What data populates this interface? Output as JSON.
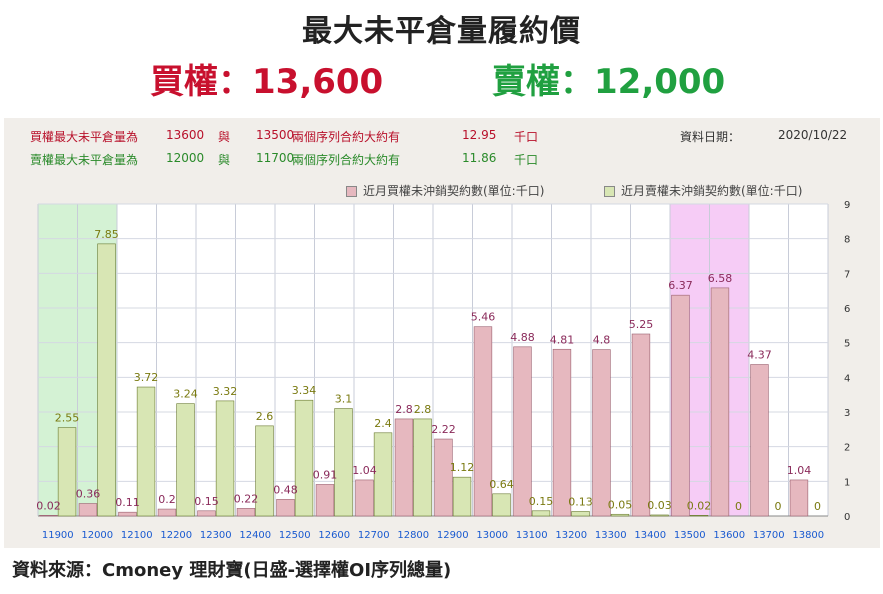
{
  "header": {
    "title": "最大未平倉量履約價",
    "buy_label": "買權：13,600",
    "sell_label": "賣權：12,000"
  },
  "info": {
    "buy_row": {
      "label": "買權最大未平倉量為",
      "v1": "13600",
      "mid": "與",
      "v2": "13500",
      "desc": "兩個序列合約大約有",
      "amount": "12.95",
      "unit": "千口"
    },
    "sell_row": {
      "label": "賣權最大未平倉量為",
      "v1": "12000",
      "mid": "與",
      "v2": "11700",
      "desc": "兩個序列合約大約有",
      "amount": "11.86",
      "unit": "千口"
    },
    "date_label": "資料日期：",
    "date_value": "2020/10/22"
  },
  "colors": {
    "buy_bar": "#e6b8bf",
    "sell_bar": "#d8e6b4",
    "buy_label": "#8a2a5a",
    "sell_label": "#7a7a10",
    "highlight_green": "#d4f2d4",
    "highlight_pink": "#f6ccf6",
    "x_tick": "#1a5ad0"
  },
  "chart_data": {
    "type": "bar",
    "categories": [
      "11900",
      "12000",
      "12100",
      "12200",
      "12300",
      "12400",
      "12500",
      "12600",
      "12700",
      "12800",
      "12900",
      "13000",
      "13100",
      "13200",
      "13300",
      "13400",
      "13500",
      "13600",
      "13700",
      "13800"
    ],
    "series": [
      {
        "name": "近月買權未沖銷契約數(單位:千口)",
        "values": [
          0.02,
          0.36,
          0.11,
          0.2,
          0.15,
          0.22,
          0.48,
          0.91,
          1.04,
          2.8,
          2.22,
          5.46,
          4.88,
          4.81,
          4.8,
          5.25,
          6.37,
          6.58,
          4.37,
          1.04
        ],
        "labels": [
          "0.02",
          "0.36",
          "0.11",
          "0.2",
          "0.15",
          "0.22",
          "0.48",
          "0.91",
          "1.04",
          "2.8",
          "2.22",
          "5.46",
          "4.88",
          "4.81",
          "4.8",
          "5.25",
          "6.37",
          "6.58",
          "4.37",
          "1.04"
        ]
      },
      {
        "name": "近月賣權未沖銷契約數(單位:千口)",
        "values": [
          2.55,
          7.85,
          3.72,
          3.24,
          3.32,
          2.6,
          3.34,
          3.1,
          2.4,
          2.8,
          1.12,
          0.64,
          0.15,
          0.13,
          0.05,
          0.03,
          0.02,
          0,
          0,
          0
        ],
        "labels": [
          "2.55",
          "7.85",
          "3.72",
          "3.24",
          "3.32",
          "2.6",
          "3.34",
          "3.1",
          "2.4",
          "2.8",
          "1.12",
          "0.64",
          "0.15",
          "0.13",
          "0.05",
          "0.03",
          "0.02",
          "0",
          "0",
          "0"
        ]
      }
    ],
    "ylim": [
      0,
      9
    ],
    "yticks": [
      "0",
      "1",
      "2",
      "3",
      "4",
      "5",
      "6",
      "7",
      "8",
      "9"
    ],
    "y_axis_side": "right",
    "grid": true,
    "legend_position": "top-right",
    "highlight_ranges": [
      {
        "from": "11900",
        "to": "12000",
        "color": "green"
      },
      {
        "from": "13500",
        "to": "13600",
        "color": "pink"
      }
    ]
  },
  "source": "資料來源：Cmoney 理財寶(日盛-選擇權OI序列總量)"
}
